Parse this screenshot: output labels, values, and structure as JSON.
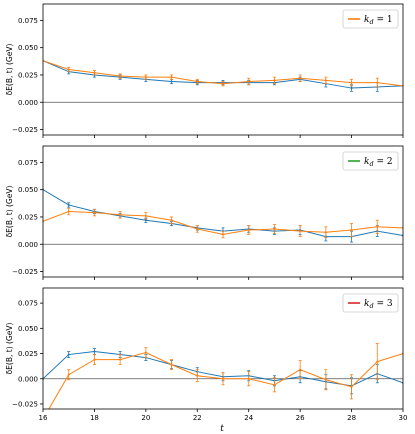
{
  "chart_data": [
    {
      "type": "line",
      "panel": 1,
      "ylabel": "δE(B, t) (GeV)",
      "xlabel": "",
      "xlim": [
        16,
        30
      ],
      "ylim": [
        -0.03,
        0.09
      ],
      "yticks": [
        "−0.025",
        "0.000",
        "0.025",
        "0.050",
        "0.075"
      ],
      "xticks": [],
      "grid": false,
      "legend_position": "top-right",
      "legend": [
        {
          "label": "k_d = 1",
          "sub": "d",
          "value": "1",
          "color": "#ff7f0e"
        }
      ],
      "series": [
        {
          "name": "blue",
          "color": "#1f77b4",
          "x": [
            16,
            17,
            18,
            19,
            20,
            21,
            22,
            23,
            24,
            25,
            26,
            27,
            28,
            29,
            30
          ],
          "y": [
            0.038,
            0.028,
            0.025,
            0.023,
            0.021,
            0.019,
            0.018,
            0.018,
            0.018,
            0.018,
            0.021,
            0.017,
            0.013,
            0.014,
            0.015
          ],
          "err": [
            0.0,
            0.002,
            0.002,
            0.002,
            0.002,
            0.002,
            0.002,
            0.002,
            0.002,
            0.002,
            0.002,
            0.003,
            0.003,
            0.004,
            0.0
          ]
        },
        {
          "name": "orange",
          "color": "#ff7f0e",
          "x": [
            16,
            17,
            18,
            19,
            20,
            21,
            22,
            23,
            24,
            25,
            26,
            27,
            28,
            29,
            30
          ],
          "y": [
            0.038,
            0.03,
            0.027,
            0.024,
            0.023,
            0.023,
            0.019,
            0.017,
            0.019,
            0.02,
            0.022,
            0.02,
            0.018,
            0.018,
            0.015
          ],
          "err": [
            0.0,
            0.002,
            0.002,
            0.002,
            0.002,
            0.002,
            0.002,
            0.002,
            0.003,
            0.003,
            0.003,
            0.003,
            0.003,
            0.004,
            0.0
          ]
        }
      ]
    },
    {
      "type": "line",
      "panel": 2,
      "ylabel": "δE(B, t) (GeV)",
      "xlabel": "",
      "xlim": [
        16,
        30
      ],
      "ylim": [
        -0.03,
        0.09
      ],
      "yticks": [
        "−0.025",
        "0.000",
        "0.025",
        "0.050",
        "0.075"
      ],
      "xticks": [],
      "grid": false,
      "legend_position": "top-right",
      "legend": [
        {
          "label": "k_d = 2",
          "sub": "d",
          "value": "2",
          "color": "#2ca02c"
        }
      ],
      "series": [
        {
          "name": "blue",
          "color": "#1f77b4",
          "x": [
            16,
            17,
            18,
            19,
            20,
            21,
            22,
            23,
            24,
            25,
            26,
            27,
            28,
            29,
            30
          ],
          "y": [
            0.05,
            0.036,
            0.03,
            0.026,
            0.022,
            0.019,
            0.015,
            0.012,
            0.014,
            0.012,
            0.013,
            0.007,
            0.007,
            0.012,
            0.008
          ],
          "err": [
            0.0,
            0.002,
            0.002,
            0.002,
            0.002,
            0.002,
            0.002,
            0.003,
            0.003,
            0.003,
            0.004,
            0.004,
            0.005,
            0.005,
            0.0
          ]
        },
        {
          "name": "orange",
          "color": "#ff7f0e",
          "x": [
            16,
            17,
            18,
            19,
            20,
            21,
            22,
            23,
            24,
            25,
            26,
            27,
            28,
            29,
            30
          ],
          "y": [
            0.021,
            0.03,
            0.029,
            0.027,
            0.026,
            0.022,
            0.014,
            0.009,
            0.013,
            0.014,
            0.012,
            0.011,
            0.013,
            0.016,
            0.015
          ],
          "err": [
            0.0,
            0.003,
            0.003,
            0.003,
            0.003,
            0.003,
            0.003,
            0.003,
            0.004,
            0.004,
            0.005,
            0.005,
            0.006,
            0.006,
            0.0
          ]
        }
      ]
    },
    {
      "type": "line",
      "panel": 3,
      "ylabel": "δE(B, t) (GeV)",
      "xlabel": "t",
      "xlim": [
        16,
        30
      ],
      "ylim": [
        -0.03,
        0.09
      ],
      "yticks": [
        "−0.025",
        "0.000",
        "0.025",
        "0.050",
        "0.075"
      ],
      "xticks": [
        "16",
        "18",
        "20",
        "22",
        "24",
        "26",
        "28",
        "30"
      ],
      "grid": false,
      "legend_position": "top-right",
      "legend": [
        {
          "label": "k_d = 3",
          "sub": "d",
          "value": "3",
          "color": "#d62728"
        }
      ],
      "series": [
        {
          "name": "blue",
          "color": "#1f77b4",
          "x": [
            16,
            17,
            18,
            19,
            20,
            21,
            22,
            23,
            24,
            25,
            26,
            27,
            28,
            29,
            30
          ],
          "y": [
            0.0,
            0.024,
            0.027,
            0.024,
            0.021,
            0.014,
            0.007,
            0.002,
            0.003,
            -0.002,
            0.002,
            -0.003,
            -0.007,
            0.005,
            -0.004
          ],
          "err": [
            0.0,
            0.003,
            0.003,
            0.003,
            0.003,
            0.004,
            0.004,
            0.004,
            0.005,
            0.005,
            0.006,
            0.007,
            0.008,
            0.009,
            0.0
          ]
        },
        {
          "name": "orange",
          "color": "#ff7f0e",
          "x": [
            16,
            17,
            18,
            19,
            20,
            21,
            22,
            23,
            24,
            25,
            26,
            27,
            28,
            29,
            30
          ],
          "y": [
            -0.04,
            0.004,
            0.019,
            0.019,
            0.026,
            0.014,
            0.003,
            0.0,
            0.0,
            -0.006,
            0.009,
            -0.001,
            -0.008,
            0.017,
            0.025
          ],
          "err": [
            0.0,
            0.005,
            0.005,
            0.005,
            0.005,
            0.005,
            0.006,
            0.006,
            0.007,
            0.007,
            0.009,
            0.01,
            0.012,
            0.018,
            0.0
          ]
        }
      ]
    }
  ]
}
